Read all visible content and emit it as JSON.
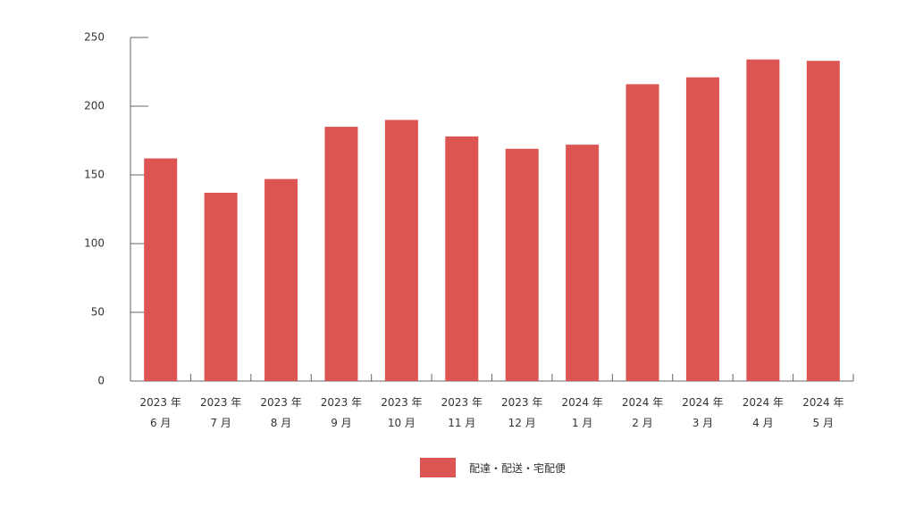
{
  "chart_data": {
    "type": "bar",
    "categories": [
      "2023 年\n6 月",
      "2023 年\n7 月",
      "2023 年\n8 月",
      "2023 年\n9 月",
      "2023 年\n10 月",
      "2023 年\n11 月",
      "2023 年\n12 月",
      "2024 年\n1 月",
      "2024 年\n2 月",
      "2024 年\n3 月",
      "2024 年\n4 月",
      "2024 年\n5 月"
    ],
    "series": [
      {
        "name": "配達・配送・宅配便",
        "color": "#dc5552",
        "values": [
          162,
          137,
          147,
          185,
          190,
          178,
          169,
          172,
          216,
          221,
          234,
          233
        ]
      }
    ],
    "ylim": [
      0,
      250
    ],
    "yticks": [
      0,
      50,
      100,
      150,
      200,
      250
    ],
    "grid": false,
    "legend": "bottom"
  }
}
